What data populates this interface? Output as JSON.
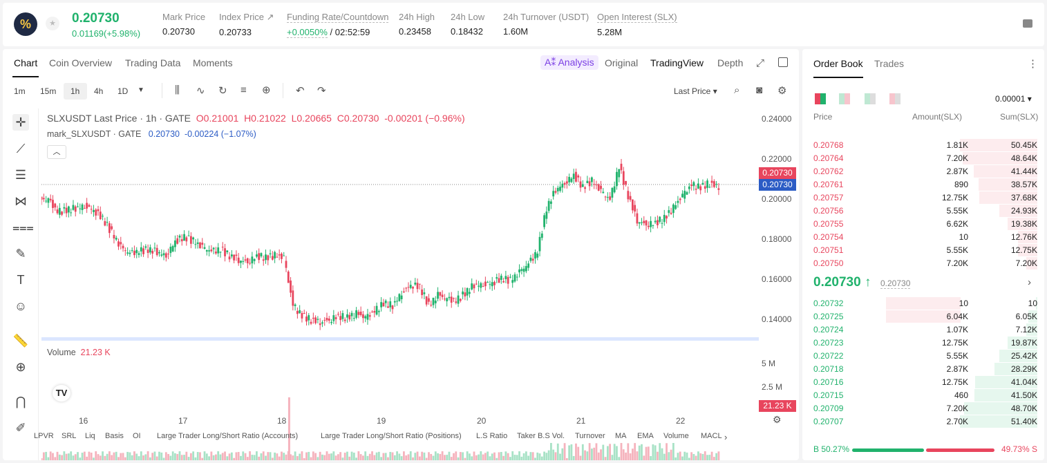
{
  "header": {
    "logo": "%",
    "star": "★",
    "price": "0.20730",
    "change": "0.01169(+5.98%)",
    "stats": [
      {
        "label": "Mark Price",
        "value": "0.20730"
      },
      {
        "label": "Index Price ↗",
        "value": "0.20733"
      },
      {
        "label": "Funding Rate/Countdown",
        "value": "+0.0050%",
        "value2": " / 02:52:59"
      },
      {
        "label": "24h High",
        "value": "0.23458"
      },
      {
        "label": "24h Low",
        "value": "0.18432"
      },
      {
        "label": "24h Turnover (USDT)",
        "value": "1.60M"
      },
      {
        "label": "Open Interest (SLX)",
        "value": "5.28M"
      }
    ]
  },
  "chart_tabs": [
    "Chart",
    "Coin Overview",
    "Trading Data",
    "Moments"
  ],
  "view_tabs": {
    "ai": "A⁑ Analysis",
    "original": "Original",
    "tradingview": "TradingView",
    "depth": "Depth"
  },
  "intervals": [
    "1m",
    "15m",
    "1h",
    "4h",
    "1D"
  ],
  "price_type": "Last Price ▾",
  "legend": {
    "title": "SLXUSDT Last Price · 1h · GATE",
    "o": "O0.21001",
    "h": "H0.21022",
    "l": "L0.20665",
    "c": "C0.20730",
    "chg": "-0.00201 (−0.96%)",
    "mark": "mark_SLXUSDT · GATE",
    "mark_val": "0.20730",
    "mark_chg": "-0.00224 (−1.07%)"
  },
  "volume": {
    "label": "Volume",
    "value": "21.23 K",
    "axis": [
      "5 M",
      "2.5 M"
    ],
    "tag": "21.23 K"
  },
  "price_tags": {
    "last": "0.20730",
    "mark": "0.20730"
  },
  "indicators": [
    "LPVR",
    "SRL",
    "Liq",
    "Basis",
    "OI",
    "Large Trader Long/Short Ratio (Accounts)",
    "Large Trader Long/Short Ratio (Positions)",
    "L.S Ratio",
    "Taker B.S Vol.",
    "Turnover",
    "MA",
    "EMA",
    "Volume",
    "MACL"
  ],
  "colors": {
    "up": "#20b26c",
    "down": "#e8455d",
    "accent": "#7b3fe4"
  },
  "chart_data": {
    "type": "candlestick",
    "y_ticks": [
      "0.24000",
      "0.22000",
      "0.20000",
      "0.18000",
      "0.16000",
      "0.14000"
    ],
    "ylim": [
      0.135,
      0.245
    ],
    "x_ticks": [
      "16",
      "17",
      "18",
      "19",
      "20",
      "21",
      "22"
    ],
    "series": [
      {
        "name": "SLXUSDT Last Price",
        "values": [
          0.201,
          0.195,
          0.196,
          0.197,
          0.198,
          0.196,
          0.192,
          0.185,
          0.178,
          0.175,
          0.176,
          0.177,
          0.176,
          0.174,
          0.181,
          0.183,
          0.181,
          0.178,
          0.176,
          0.177,
          0.174,
          0.172,
          0.171,
          0.174,
          0.173,
          0.174,
          0.173,
          0.15,
          0.145,
          0.143,
          0.142,
          0.143,
          0.145,
          0.144,
          0.146,
          0.144,
          0.147,
          0.151,
          0.15,
          0.156,
          0.16,
          0.159,
          0.15,
          0.155,
          0.153,
          0.152,
          0.156,
          0.16,
          0.16,
          0.161,
          0.163,
          0.162,
          0.166,
          0.17,
          0.176,
          0.197,
          0.206,
          0.209,
          0.213,
          0.207,
          0.21,
          0.205,
          0.201,
          0.217,
          0.203,
          0.191,
          0.189,
          0.19,
          0.192,
          0.197,
          0.203,
          0.208,
          0.207,
          0.209,
          0.207
        ]
      }
    ]
  },
  "orderbook": {
    "tabs": [
      "Order Book",
      "Trades"
    ],
    "precision": "0.00001 ▾",
    "headers": [
      "Price",
      "Amount(SLX)",
      "Sum(SLX)"
    ],
    "asks": [
      {
        "p": "0.20768",
        "a": "1.81K",
        "s": "50.45K",
        "d": 1.0,
        "w": 0
      },
      {
        "p": "0.20764",
        "a": "7.20K",
        "s": "48.64K",
        "d": 0.96,
        "w": 0
      },
      {
        "p": "0.20762",
        "a": "2.87K",
        "s": "41.44K",
        "d": 0.82,
        "w": 0
      },
      {
        "p": "0.20761",
        "a": "890",
        "s": "38.57K",
        "d": 0.76,
        "w": 0
      },
      {
        "p": "0.20757",
        "a": "12.75K",
        "s": "37.68K",
        "d": 0.75,
        "w": 0
      },
      {
        "p": "0.20756",
        "a": "5.55K",
        "s": "24.93K",
        "d": 0.49,
        "w": 0
      },
      {
        "p": "0.20755",
        "a": "6.62K",
        "s": "19.38K",
        "d": 0.38,
        "w": 0
      },
      {
        "p": "0.20754",
        "a": "10",
        "s": "12.76K",
        "d": 0.25,
        "w": 0
      },
      {
        "p": "0.20751",
        "a": "5.55K",
        "s": "12.75K",
        "d": 0.25,
        "w": 0
      },
      {
        "p": "0.20750",
        "a": "7.20K",
        "s": "7.20K",
        "d": 0.14,
        "w": 0
      }
    ],
    "mid": "0.20730 ↑",
    "mid_ref": "0.20730",
    "bids": [
      {
        "p": "0.20732",
        "a": "10",
        "s": "10",
        "d": 0.02,
        "w": 0.6
      },
      {
        "p": "0.20725",
        "a": "6.04K",
        "s": "6.05K",
        "d": 0.12,
        "w": 0.6
      },
      {
        "p": "0.20724",
        "a": "1.07K",
        "s": "7.12K",
        "d": 0.14,
        "w": 0
      },
      {
        "p": "0.20723",
        "a": "12.75K",
        "s": "19.87K",
        "d": 0.38,
        "w": 0
      },
      {
        "p": "0.20722",
        "a": "5.55K",
        "s": "25.42K",
        "d": 0.49,
        "w": 0
      },
      {
        "p": "0.20718",
        "a": "2.87K",
        "s": "28.29K",
        "d": 0.55,
        "w": 0
      },
      {
        "p": "0.20716",
        "a": "12.75K",
        "s": "41.04K",
        "d": 0.8,
        "w": 0
      },
      {
        "p": "0.20715",
        "a": "460",
        "s": "41.50K",
        "d": 0.81,
        "w": 0
      },
      {
        "p": "0.20709",
        "a": "7.20K",
        "s": "48.70K",
        "d": 0.95,
        "w": 0
      },
      {
        "p": "0.20707",
        "a": "2.70K",
        "s": "51.40K",
        "d": 1.0,
        "w": 0
      }
    ],
    "buy": "B 50.27%",
    "sell": "49.73% S",
    "buy_ratio": 0.5027
  }
}
